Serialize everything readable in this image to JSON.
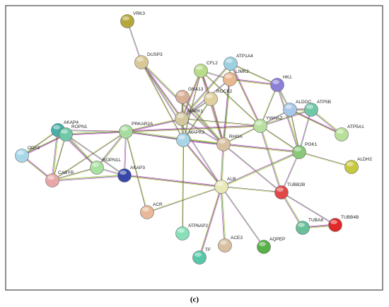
{
  "nodes": [
    {
      "label": "VRK3"
    },
    {
      "label": "DUSP3"
    },
    {
      "label": "CFL2"
    },
    {
      "label": "ATP1A4"
    },
    {
      "label": "LIMK2"
    },
    {
      "label": "HK1"
    },
    {
      "label": "GNA13"
    },
    {
      "label": "ROCK2"
    },
    {
      "label": "MAPK1"
    },
    {
      "label": "MAPK3"
    },
    {
      "label": "PRKAR2A"
    },
    {
      "label": "RHOA"
    },
    {
      "label": "YWHAZ"
    },
    {
      "label": "ALDOC"
    },
    {
      "label": "ATP5B"
    },
    {
      "label": "ATP5A1"
    },
    {
      "label": "PGK1"
    },
    {
      "label": "ALDH2"
    },
    {
      "label": "AKAP4"
    },
    {
      "label": "ROPN1"
    },
    {
      "label": "ODF2"
    },
    {
      "label": "CABYR"
    },
    {
      "label": "ROPN1L"
    },
    {
      "label": "AKAP3"
    },
    {
      "label": "ALB"
    },
    {
      "label": "TUBB2B"
    },
    {
      "label": "ACR"
    },
    {
      "label": "ATP6AP2"
    },
    {
      "label": "TUBA8"
    },
    {
      "label": "TUBB4B"
    },
    {
      "label": "ACE3"
    },
    {
      "label": "AQPEP"
    },
    {
      "label": "TF"
    }
  ],
  "caption": "(c)"
}
